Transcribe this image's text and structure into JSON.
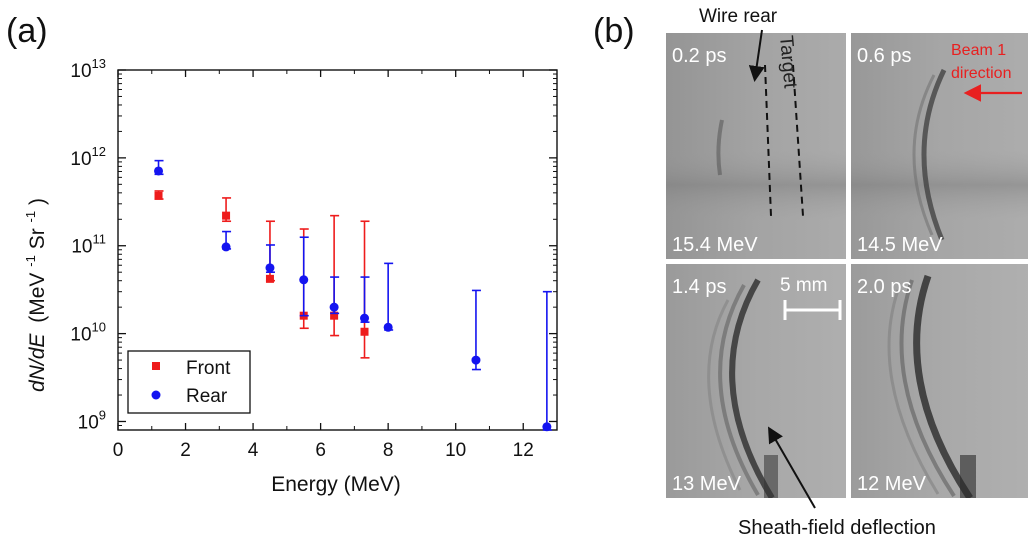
{
  "panel_a": {
    "label": "(a)",
    "legend": [
      "Front",
      "Rear"
    ],
    "y_axis_prefix": "dN/dE",
    "y_axis_unit": "(MeV",
    "y_axis_exp1": "-1",
    "y_axis_mid": " Sr",
    "y_axis_exp2": "-1",
    "y_axis_close": ")"
  },
  "panel_b": {
    "label": "(b)",
    "annotations": {
      "wire_rear": "Wire rear",
      "target": "Target",
      "beam1_line1": "Beam 1",
      "beam1_line2": "direction",
      "scale": "5 mm",
      "sheath": "Sheath-field deflection"
    },
    "frames": [
      {
        "time": "0.2 ps",
        "energy": "15.4 MeV"
      },
      {
        "time": "0.6 ps",
        "energy": "14.5 MeV"
      },
      {
        "time": "1.4 ps",
        "energy": "13 MeV"
      },
      {
        "time": "2.0 ps",
        "energy": "12 MeV"
      }
    ]
  },
  "chart_data": {
    "type": "scatter",
    "title": "",
    "xlabel": "Energy (MeV)",
    "ylabel": "dN/dE (MeV-1 Sr-1)",
    "xlim": [
      0,
      13
    ],
    "ylim": [
      800000000,
      10000000000000
    ],
    "yscale": "log",
    "x_ticks": [
      0,
      2,
      4,
      6,
      8,
      10,
      12
    ],
    "x_tick_labels": [
      "0",
      "2",
      "4",
      "6",
      "8",
      "10",
      "12"
    ],
    "y_ticks": [
      1000000000,
      10000000000,
      100000000000,
      1000000000000,
      10000000000000
    ],
    "y_tick_labels": [
      {
        "base": "10",
        "exp": "9"
      },
      {
        "base": "10",
        "exp": "10"
      },
      {
        "base": "10",
        "exp": "11"
      },
      {
        "base": "10",
        "exp": "12"
      },
      {
        "base": "10",
        "exp": "13"
      }
    ],
    "grid": false,
    "legend_position": "bottom-left",
    "series": [
      {
        "name": "Front",
        "color": "#ee1c1c",
        "marker": "square",
        "points": [
          {
            "x": 1.2,
            "y": 370000000000,
            "lo": 340000000000,
            "hi": 420000000000
          },
          {
            "x": 3.2,
            "y": 220000000000,
            "lo": 190000000000,
            "hi": 350000000000
          },
          {
            "x": 4.5,
            "y": 42000000000,
            "lo": 40000000000,
            "hi": 190000000000
          },
          {
            "x": 5.5,
            "y": 16000000000,
            "lo": 11500000000,
            "hi": 155000000000
          },
          {
            "x": 6.4,
            "y": 16000000000,
            "lo": 9500000000,
            "hi": 220000000000
          },
          {
            "x": 7.3,
            "y": 10500000000,
            "lo": 5300000000,
            "hi": 190000000000
          }
        ]
      },
      {
        "name": "Rear",
        "color": "#1414f0",
        "marker": "circle",
        "points": [
          {
            "x": 1.2,
            "y": 710000000000,
            "lo": 650000000000,
            "hi": 930000000000
          },
          {
            "x": 3.2,
            "y": 97000000000,
            "lo": 92000000000,
            "hi": 145000000000
          },
          {
            "x": 4.5,
            "y": 56000000000,
            "lo": 50000000000,
            "hi": 102000000000
          },
          {
            "x": 5.5,
            "y": 41000000000,
            "lo": 16000000000,
            "hi": 125000000000
          },
          {
            "x": 6.4,
            "y": 20000000000,
            "lo": 17000000000,
            "hi": 44000000000
          },
          {
            "x": 7.3,
            "y": 15000000000,
            "lo": 13500000000,
            "hi": 44000000000
          },
          {
            "x": 8.0,
            "y": 11800000000,
            "lo": 11000000000,
            "hi": 63000000000
          },
          {
            "x": 10.6,
            "y": 5000000000,
            "lo": 3900000000,
            "hi": 31000000000
          },
          {
            "x": 12.7,
            "y": 870000000,
            "lo": 800000000,
            "hi": 30000000000
          }
        ]
      }
    ]
  }
}
